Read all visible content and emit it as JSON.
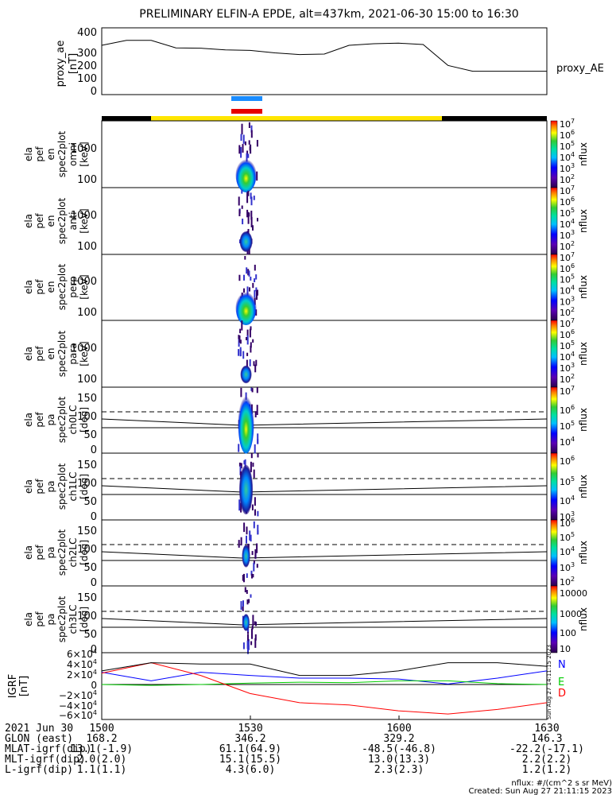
{
  "title": "PRELIMINARY ELFIN-A EPDE, alt=437km, 2021-06-30 15:00 to 16:30",
  "time_axis": {
    "start_minutes": 0,
    "end_minutes": 90,
    "tick_labels": [
      "1500",
      "1530",
      "1600",
      "1630"
    ],
    "tick_values_minutes": [
      0,
      30,
      60,
      90
    ]
  },
  "panels": {
    "proxy_ae": {
      "ylabel": "proxy_ae\n[nT]",
      "legend": "proxy_AE",
      "ylim": [
        0,
        400
      ],
      "yticks": [
        "0",
        "100",
        "200",
        "300",
        "400"
      ]
    },
    "spectra": [
      {
        "ylabel": "ela\npef\nen\nspec2plot\nomni\n[keV]",
        "yticks": [
          "100",
          "1000"
        ],
        "log": true,
        "colorbar_ticks": [
          "10^2",
          "10^3",
          "10^4",
          "10^5",
          "10^6",
          "10^7"
        ],
        "colorbar_label": "nflux"
      },
      {
        "ylabel": "ela\npef\nen\nspec2plot\nanti\n[keV]",
        "yticks": [
          "100",
          "1000"
        ],
        "log": true,
        "colorbar_ticks": [
          "10^2",
          "10^3",
          "10^4",
          "10^5",
          "10^6",
          "10^7"
        ],
        "colorbar_label": "nflux"
      },
      {
        "ylabel": "ela\npef\nen\nspec2plot\nperp\n[keV]",
        "yticks": [
          "100",
          "1000"
        ],
        "log": true,
        "colorbar_ticks": [
          "10^2",
          "10^3",
          "10^4",
          "10^5",
          "10^6",
          "10^7"
        ],
        "colorbar_label": "nflux"
      },
      {
        "ylabel": "ela\npef\nen\nspec2plot\npara\n[keV]",
        "yticks": [
          "100",
          "1000"
        ],
        "log": true,
        "colorbar_ticks": [
          "10^2",
          "10^3",
          "10^4",
          "10^5",
          "10^6",
          "10^7"
        ],
        "colorbar_label": "nflux"
      }
    ],
    "pitch_angle": [
      {
        "ylabel": "ela\npef\npa\nspec2plot\nch0LC\n[deg]",
        "yticks": [
          "0",
          "50",
          "100",
          "150"
        ],
        "ylim": [
          0,
          180
        ],
        "colorbar_ticks": [
          "10^4",
          "10^5",
          "10^6",
          "10^7"
        ],
        "colorbar_label": "nflux"
      },
      {
        "ylabel": "ela\npef\npa\nspec2plot\nch1LC\n[deg]",
        "yticks": [
          "0",
          "50",
          "100",
          "150"
        ],
        "ylim": [
          0,
          180
        ],
        "colorbar_ticks": [
          "10^3",
          "10^4",
          "10^5",
          "10^6"
        ],
        "colorbar_label": "nflux"
      },
      {
        "ylabel": "ela\npef\npa\nspec2plot\nch2LC\n[deg]",
        "yticks": [
          "0",
          "50",
          "100",
          "150"
        ],
        "ylim": [
          0,
          180
        ],
        "colorbar_ticks": [
          "10^2",
          "10^3",
          "10^4",
          "10^5",
          "10^6"
        ],
        "colorbar_label": "nflux"
      },
      {
        "ylabel": "ela\npef\npa\nspec2plot\nch3LC\n[deg]",
        "yticks": [
          "0",
          "50",
          "100",
          "150"
        ],
        "ylim": [
          0,
          180
        ],
        "colorbar_ticks": [
          "10",
          "100",
          "1000",
          "10000"
        ],
        "colorbar_label": "nflux"
      }
    ],
    "igrf": {
      "ylabel": "IGRF\n[nT]",
      "yticks": [
        "-6x10^4",
        "-4x10^4",
        "-2x10^4",
        "0",
        "2x10^4",
        "4x10^4",
        "6x10^4"
      ],
      "legend": [
        {
          "label": "N",
          "color": "#0000ff"
        },
        {
          "label": "E",
          "color": "#00cc00"
        },
        {
          "label": "D",
          "color": "#ff0000"
        }
      ]
    }
  },
  "bottom_table": {
    "rows": [
      {
        "label": "2021 Jun 30",
        "values": [
          "1500",
          "1530",
          "1600",
          "1630"
        ]
      },
      {
        "label": "GLON (east)",
        "values": [
          "168.2",
          "346.2",
          "329.2",
          "146.3"
        ]
      },
      {
        "label": "MLAT-igrf(dip)",
        "values": [
          "13.1(-1.9)",
          "61.1(64.9)",
          "-48.5(-46.8)",
          "-22.2(-17.1)"
        ]
      },
      {
        "label": "MLT-igrf(dip)",
        "values": [
          "2.0(2.0)",
          "15.1(15.5)",
          "13.0(13.3)",
          "2.2(2.2)"
        ]
      },
      {
        "label": "L-igrf(dip)",
        "values": [
          "1.1(1.1)",
          "4.3(6.0)",
          "2.3(2.3)",
          "1.2(1.2)"
        ]
      }
    ]
  },
  "footer": {
    "units": "nflux: #/(cm^2 s sr MeV)",
    "created": "Created: Sun Aug 27 21:11:15 2023"
  },
  "side_stamp": "Sun Aug 27 14:11:15 2023",
  "chart_data": [
    {
      "type": "line",
      "title": "proxy_AE",
      "x_minutes": [
        0,
        5,
        10,
        15,
        20,
        25,
        30,
        35,
        40,
        45,
        50,
        55,
        60,
        65,
        70,
        75,
        80,
        85,
        90
      ],
      "series": [
        {
          "name": "proxy_AE",
          "values": [
            295,
            325,
            325,
            280,
            278,
            268,
            265,
            250,
            240,
            243,
            295,
            305,
            308,
            300,
            175,
            140,
            140,
            140,
            140
          ]
        }
      ],
      "ylim": [
        0,
        400
      ]
    },
    {
      "type": "line",
      "title": "IGRF",
      "x_minutes": [
        0,
        10,
        20,
        30,
        40,
        50,
        60,
        70,
        80,
        90
      ],
      "series": [
        {
          "name": "N",
          "values": [
            27000,
            8000,
            27000,
            20000,
            14000,
            14000,
            12000,
            1000,
            14000,
            30000
          ]
        },
        {
          "name": "E",
          "values": [
            0,
            -2000,
            0,
            3000,
            5000,
            4000,
            8000,
            8000,
            2000,
            0
          ]
        },
        {
          "name": "D",
          "values": [
            25000,
            48000,
            20000,
            -20000,
            -40000,
            -45000,
            -58000,
            -65000,
            -55000,
            -40000
          ]
        },
        {
          "name": "total",
          "values": [
            30000,
            48000,
            45000,
            45000,
            20000,
            20000,
            30000,
            48000,
            48000,
            40000
          ]
        }
      ],
      "ylim": [
        -70000,
        70000
      ]
    },
    {
      "type": "heatmap",
      "title": "spectrograms",
      "active_window_minutes": [
        27.5,
        31.5
      ]
    }
  ]
}
